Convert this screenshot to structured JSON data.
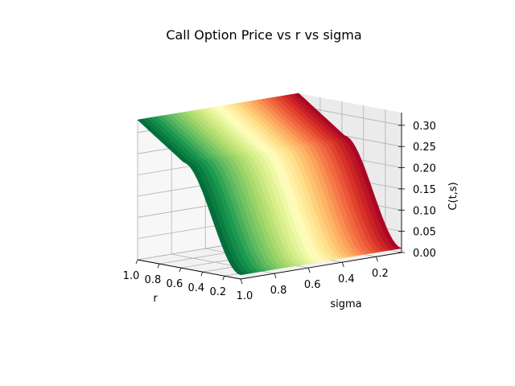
{
  "chart_data": {
    "type": "surface3d",
    "title": "Call Option Price vs r vs sigma",
    "xlabel": "r",
    "ylabel": "sigma",
    "zlabel": "C(t,s)",
    "x_ticks": [
      "1.0",
      "0.8",
      "0.6",
      "0.4",
      "0.2"
    ],
    "y_ticks": [
      "1.0",
      "0.8",
      "0.6",
      "0.4",
      "0.2"
    ],
    "z_ticks": [
      "0.00",
      "0.05",
      "0.10",
      "0.15",
      "0.20",
      "0.25",
      "0.30"
    ],
    "xlim": [
      0.05,
      1.0
    ],
    "ylim": [
      0.05,
      1.0
    ],
    "zlim": [
      0.0,
      0.33
    ],
    "colormap": "RdYlGn",
    "grid": true,
    "samples": {
      "r": [
        0.1,
        0.55,
        1.0
      ],
      "sigma": [
        0.1,
        0.55,
        1.0
      ],
      "price_sigma_0_1": [
        0.01,
        0.25,
        0.33
      ],
      "price_sigma_1_0": [
        0.01,
        0.25,
        0.33
      ]
    }
  }
}
